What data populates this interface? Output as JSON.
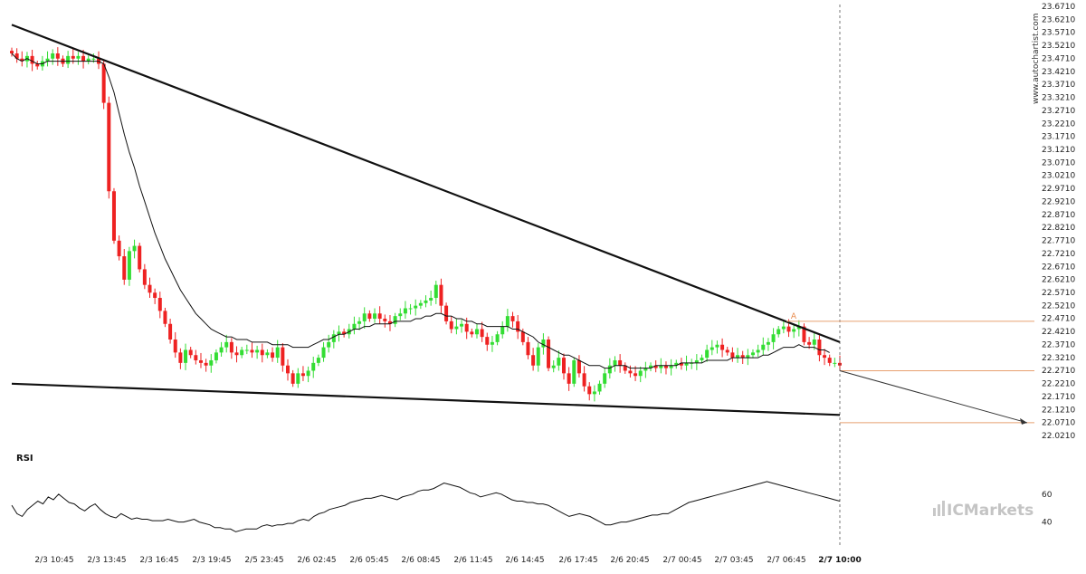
{
  "watermark": "www.autochartist.com",
  "brand": "ICMarkets",
  "colors": {
    "up": "#33dd33",
    "down": "#ee2222",
    "trend": "#111111",
    "ma": "#111111",
    "level": "#e8a070",
    "forecast": "#333333"
  },
  "chart_data": [
    {
      "type": "candlestick",
      "ylim": [
        22.021,
        23.671
      ],
      "y_ticks": [
        "23.6710",
        "23.6210",
        "23.5710",
        "23.5210",
        "23.4710",
        "23.4210",
        "23.3710",
        "23.3210",
        "23.2710",
        "23.2210",
        "23.1710",
        "23.1210",
        "23.0710",
        "23.0210",
        "22.9710",
        "22.9210",
        "22.8710",
        "22.8210",
        "22.7710",
        "22.7210",
        "22.6710",
        "22.6210",
        "22.5710",
        "22.5210",
        "22.4710",
        "22.4210",
        "22.3710",
        "22.3210",
        "22.2710",
        "22.2210",
        "22.1710",
        "22.1210",
        "22.0710",
        "22.0210"
      ],
      "x_labels": [
        "2/3 10:45",
        "2/3 13:45",
        "2/3 16:45",
        "2/3 19:45",
        "2/5 23:45",
        "2/6 02:45",
        "2/6 05:45",
        "2/6 08:45",
        "2/6 11:45",
        "2/6 14:45",
        "2/6 17:45",
        "2/6 20:45",
        "2/7 00:45",
        "2/7 03:45",
        "2/7 06:45",
        "2/7 10:00"
      ],
      "candle_closes": [
        23.49,
        23.47,
        23.46,
        23.48,
        23.45,
        23.44,
        23.46,
        23.47,
        23.49,
        23.47,
        23.45,
        23.48,
        23.47,
        23.48,
        23.46,
        23.47,
        23.47,
        23.45,
        23.3,
        22.96,
        22.77,
        22.71,
        22.62,
        22.73,
        22.75,
        22.66,
        22.6,
        22.57,
        22.55,
        22.5,
        22.45,
        22.39,
        22.34,
        22.3,
        22.35,
        22.33,
        22.31,
        22.3,
        22.29,
        22.31,
        22.34,
        22.36,
        22.38,
        22.34,
        22.33,
        22.35,
        22.35,
        22.34,
        22.35,
        22.33,
        22.34,
        22.32,
        22.36,
        22.29,
        22.26,
        22.22,
        22.26,
        22.25,
        22.27,
        22.3,
        22.32,
        22.36,
        22.38,
        22.41,
        22.42,
        22.41,
        22.43,
        22.45,
        22.46,
        22.49,
        22.47,
        22.49,
        22.47,
        22.46,
        22.45,
        22.48,
        22.49,
        22.51,
        22.51,
        22.52,
        22.53,
        22.54,
        22.55,
        22.6,
        22.52,
        22.46,
        22.43,
        22.44,
        22.45,
        22.42,
        22.41,
        22.43,
        22.4,
        22.37,
        22.38,
        22.41,
        22.44,
        22.48,
        22.46,
        22.42,
        22.38,
        22.33,
        22.29,
        22.36,
        22.39,
        22.28,
        22.29,
        22.32,
        22.26,
        22.22,
        22.31,
        22.26,
        22.21,
        22.18,
        22.19,
        22.22,
        22.26,
        22.29,
        22.31,
        22.29,
        22.27,
        22.26,
        22.25,
        22.27,
        22.28,
        22.29,
        22.28,
        22.29,
        22.28,
        22.29,
        22.3,
        22.29,
        22.3,
        22.3,
        22.31,
        22.32,
        22.35,
        22.36,
        22.37,
        22.35,
        22.34,
        22.32,
        22.33,
        22.32,
        22.33,
        22.34,
        22.35,
        22.37,
        22.38,
        22.41,
        22.43,
        22.44,
        22.42,
        22.43,
        22.44,
        22.38,
        22.37,
        22.39,
        22.33,
        22.32,
        22.3,
        22.3,
        22.29
      ],
      "moving_average": [
        23.49,
        23.47,
        23.46,
        23.47,
        23.46,
        23.45,
        23.45,
        23.46,
        23.46,
        23.46,
        23.46,
        23.46,
        23.46,
        23.46,
        23.46,
        23.46,
        23.46,
        23.46,
        23.45,
        23.4,
        23.34,
        23.26,
        23.18,
        23.11,
        23.05,
        22.98,
        22.92,
        22.86,
        22.8,
        22.75,
        22.7,
        22.66,
        22.62,
        22.58,
        22.55,
        22.52,
        22.49,
        22.47,
        22.45,
        22.43,
        22.42,
        22.41,
        22.4,
        22.4,
        22.39,
        22.39,
        22.39,
        22.38,
        22.38,
        22.38,
        22.38,
        22.37,
        22.37,
        22.37,
        22.37,
        22.36,
        22.36,
        22.36,
        22.36,
        22.37,
        22.38,
        22.39,
        22.39,
        22.4,
        22.41,
        22.41,
        22.42,
        22.43,
        22.43,
        22.44,
        22.44,
        22.45,
        22.45,
        22.45,
        22.45,
        22.46,
        22.46,
        22.46,
        22.46,
        22.47,
        22.47,
        22.48,
        22.48,
        22.49,
        22.49,
        22.48,
        22.48,
        22.47,
        22.47,
        22.46,
        22.46,
        22.45,
        22.45,
        22.44,
        22.44,
        22.44,
        22.44,
        22.44,
        22.43,
        22.43,
        22.42,
        22.41,
        22.4,
        22.38,
        22.37,
        22.36,
        22.35,
        22.34,
        22.33,
        22.33,
        22.32,
        22.31,
        22.3,
        22.29,
        22.29,
        22.29,
        22.28,
        22.28,
        22.29,
        22.29,
        22.29,
        22.28,
        22.28,
        22.28,
        22.28,
        22.28,
        22.29,
        22.29,
        22.29,
        22.29,
        22.29,
        22.3,
        22.3,
        22.3,
        22.3,
        22.3,
        22.31,
        22.31,
        22.31,
        22.31,
        22.31,
        22.32,
        22.32,
        22.32,
        22.32,
        22.32,
        22.32,
        22.33,
        22.33,
        22.34,
        22.35,
        22.36,
        22.36,
        22.36,
        22.37,
        22.36,
        22.36,
        22.36,
        22.35,
        22.35,
        22.34
      ],
      "pattern": {
        "upper_trendline": {
          "from": [
            "start",
            23.6
          ],
          "to": [
            "2/7 10:00",
            22.38
          ]
        },
        "lower_trendline": {
          "from": [
            "start",
            22.22
          ],
          "to": [
            "2/7 10:00",
            22.1
          ]
        },
        "level_high": 22.46,
        "level_current": 22.27,
        "level_target": 22.07,
        "marker": "A"
      }
    },
    {
      "type": "line",
      "title": "RSI",
      "y_ticks": [
        60,
        40
      ],
      "ylim": [
        30,
        80
      ],
      "values": [
        52,
        46,
        44,
        49,
        52,
        55,
        53,
        58,
        56,
        60,
        57,
        54,
        53,
        50,
        48,
        51,
        53,
        49,
        46,
        44,
        43,
        46,
        44,
        42,
        43,
        42,
        42,
        41,
        41,
        41,
        42,
        41,
        40,
        40,
        41,
        42,
        40,
        39,
        38,
        36,
        36,
        35,
        35,
        33,
        34,
        35,
        35,
        35,
        37,
        38,
        37,
        38,
        38,
        39,
        39,
        41,
        42,
        41,
        44,
        46,
        47,
        49,
        50,
        51,
        52,
        54,
        55,
        56,
        57,
        57,
        58,
        59,
        58,
        57,
        56,
        58,
        59,
        60,
        62,
        63,
        63,
        64,
        66,
        68,
        67,
        66,
        65,
        63,
        61,
        60,
        58,
        59,
        60,
        61,
        60,
        58,
        56,
        55,
        55,
        54,
        54,
        53,
        53,
        52,
        50,
        48,
        46,
        44,
        45,
        46,
        45,
        44,
        42,
        40,
        38,
        38,
        39,
        40,
        40,
        41,
        42,
        43,
        44,
        45,
        45,
        46,
        46,
        48,
        50,
        52,
        54,
        55,
        56,
        57,
        58,
        59,
        60,
        61,
        62,
        63,
        64,
        65,
        66,
        67,
        68,
        69,
        68,
        67,
        66,
        65,
        64,
        63,
        62,
        61,
        60,
        59,
        58,
        57,
        56,
        55
      ]
    }
  ]
}
